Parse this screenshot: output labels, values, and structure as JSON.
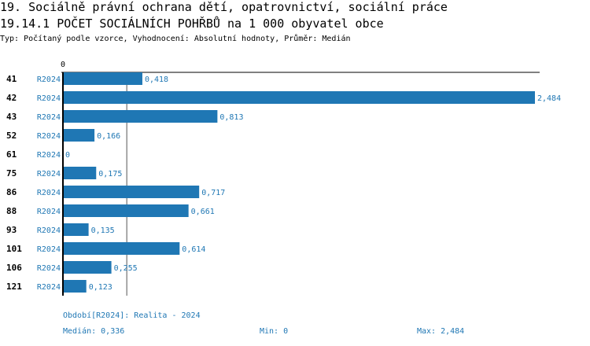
{
  "title": "19. Sociálně právní ochrana dětí, opatrovnictví, sociální práce",
  "subtitle": "19.14.1 POČET SOCIÁLNÍCH POHŘBŮ na 1 000 obyvatel obce",
  "description": "Typ: Počítaný podle vzorce, Vyhodnocení: Absolutní hodnoty, Průměr: Medián",
  "colors": {
    "bar": "#1f77b4",
    "label": "#1f77b4"
  },
  "chart_data": {
    "type": "bar",
    "orientation": "horizontal",
    "x_tick_labels": [
      "0"
    ],
    "xlim": [
      0,
      2.484
    ],
    "categories": [
      "41",
      "42",
      "43",
      "52",
      "61",
      "75",
      "86",
      "88",
      "93",
      "101",
      "106",
      "121"
    ],
    "series_label": "R2024",
    "values": [
      0.418,
      2.484,
      0.813,
      0.166,
      0,
      0.175,
      0.717,
      0.661,
      0.135,
      0.614,
      0.255,
      0.123
    ],
    "value_labels": [
      "0,418",
      "2,484",
      "0,813",
      "0,166",
      "0",
      "0,175",
      "0,717",
      "0,661",
      "0,135",
      "0,614",
      "0,255",
      "0,123"
    ],
    "median_line": 0.336
  },
  "footer": {
    "period": "Období[R2024]: Realita - 2024",
    "median": "Medián: 0,336",
    "min": "Min: 0",
    "max": "Max: 2,484"
  }
}
